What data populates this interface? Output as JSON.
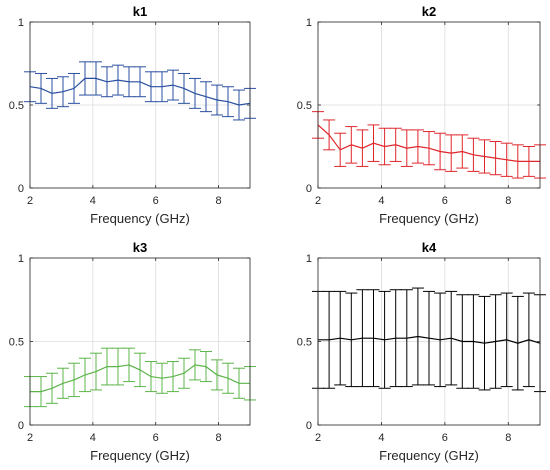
{
  "figure": {
    "xticks": [
      2,
      4,
      6,
      8
    ]
  },
  "chart_data": [
    {
      "type": "line",
      "title": "k1",
      "xlabel": "Frequency (GHz)",
      "ylabel": "",
      "xlim": [
        2,
        9
      ],
      "ylim": [
        0,
        1
      ],
      "yticks": [
        0,
        0.5,
        1
      ],
      "ytick_labels": [
        "0",
        "0.5",
        "1"
      ],
      "grid": true,
      "color": "#2a4fa0",
      "x": [
        2.0,
        2.35,
        2.7,
        3.05,
        3.4,
        3.75,
        4.1,
        4.45,
        4.8,
        5.15,
        5.5,
        5.85,
        6.2,
        6.55,
        6.9,
        7.25,
        7.6,
        7.95,
        8.3,
        8.65,
        9.0
      ],
      "y": [
        0.61,
        0.6,
        0.57,
        0.58,
        0.6,
        0.66,
        0.66,
        0.64,
        0.65,
        0.64,
        0.64,
        0.61,
        0.61,
        0.62,
        0.6,
        0.57,
        0.55,
        0.53,
        0.52,
        0.5,
        0.51
      ],
      "err": [
        0.09,
        0.09,
        0.09,
        0.09,
        0.09,
        0.1,
        0.1,
        0.09,
        0.09,
        0.09,
        0.09,
        0.09,
        0.09,
        0.09,
        0.09,
        0.09,
        0.09,
        0.09,
        0.09,
        0.09,
        0.09
      ]
    },
    {
      "type": "line",
      "title": "k2",
      "xlabel": "Frequency (GHz)",
      "ylabel": "",
      "xlim": [
        2,
        9
      ],
      "ylim": [
        0,
        1
      ],
      "yticks": [
        0,
        0.5,
        1
      ],
      "ytick_labels": [
        "0",
        "0.5",
        "1"
      ],
      "grid": true,
      "color": "#e0262b",
      "x": [
        2.0,
        2.35,
        2.7,
        3.05,
        3.4,
        3.75,
        4.1,
        4.45,
        4.8,
        5.15,
        5.5,
        5.85,
        6.2,
        6.55,
        6.9,
        7.25,
        7.6,
        7.95,
        8.3,
        8.65,
        9.0
      ],
      "y": [
        0.38,
        0.32,
        0.23,
        0.26,
        0.24,
        0.27,
        0.25,
        0.26,
        0.24,
        0.25,
        0.24,
        0.22,
        0.21,
        0.22,
        0.2,
        0.19,
        0.18,
        0.17,
        0.16,
        0.16,
        0.16
      ],
      "err": [
        0.08,
        0.09,
        0.1,
        0.11,
        0.11,
        0.11,
        0.11,
        0.1,
        0.11,
        0.1,
        0.1,
        0.11,
        0.11,
        0.1,
        0.1,
        0.1,
        0.1,
        0.1,
        0.1,
        0.09,
        0.1
      ]
    },
    {
      "type": "line",
      "title": "k3",
      "xlabel": "Frequency (GHz)",
      "ylabel": "",
      "xlim": [
        2,
        9
      ],
      "ylim": [
        0,
        1
      ],
      "yticks": [
        0,
        0.5,
        1
      ],
      "ytick_labels": [
        "0",
        "0.5",
        "1"
      ],
      "grid": true,
      "color": "#5cb44a",
      "x": [
        2.0,
        2.35,
        2.7,
        3.05,
        3.4,
        3.75,
        4.1,
        4.45,
        4.8,
        5.15,
        5.5,
        5.85,
        6.2,
        6.55,
        6.9,
        7.25,
        7.6,
        7.95,
        8.3,
        8.65,
        9.0
      ],
      "y": [
        0.2,
        0.2,
        0.22,
        0.25,
        0.27,
        0.3,
        0.32,
        0.35,
        0.35,
        0.36,
        0.33,
        0.29,
        0.28,
        0.29,
        0.31,
        0.36,
        0.35,
        0.3,
        0.28,
        0.25,
        0.25
      ],
      "err": [
        0.09,
        0.09,
        0.09,
        0.09,
        0.1,
        0.1,
        0.11,
        0.11,
        0.11,
        0.1,
        0.1,
        0.09,
        0.09,
        0.09,
        0.09,
        0.09,
        0.09,
        0.09,
        0.09,
        0.09,
        0.1
      ]
    },
    {
      "type": "line",
      "title": "k4",
      "xlabel": "Frequency (GHz)",
      "ylabel": "",
      "xlim": [
        2,
        9
      ],
      "ylim": [
        0,
        1
      ],
      "yticks": [
        0,
        0.5,
        1
      ],
      "ytick_labels": [
        "0",
        "0.5",
        "1"
      ],
      "grid": true,
      "color": "#000000",
      "x": [
        2.0,
        2.35,
        2.7,
        3.05,
        3.4,
        3.75,
        4.1,
        4.45,
        4.8,
        5.15,
        5.5,
        5.85,
        6.2,
        6.55,
        6.9,
        7.25,
        7.6,
        7.95,
        8.3,
        8.65,
        9.0
      ],
      "y": [
        0.51,
        0.51,
        0.52,
        0.51,
        0.52,
        0.52,
        0.51,
        0.52,
        0.52,
        0.53,
        0.52,
        0.51,
        0.52,
        0.5,
        0.5,
        0.49,
        0.5,
        0.51,
        0.49,
        0.51,
        0.49
      ],
      "err": [
        0.29,
        0.29,
        0.28,
        0.28,
        0.29,
        0.29,
        0.29,
        0.29,
        0.29,
        0.29,
        0.28,
        0.28,
        0.28,
        0.28,
        0.28,
        0.28,
        0.28,
        0.28,
        0.28,
        0.28,
        0.29
      ]
    }
  ]
}
